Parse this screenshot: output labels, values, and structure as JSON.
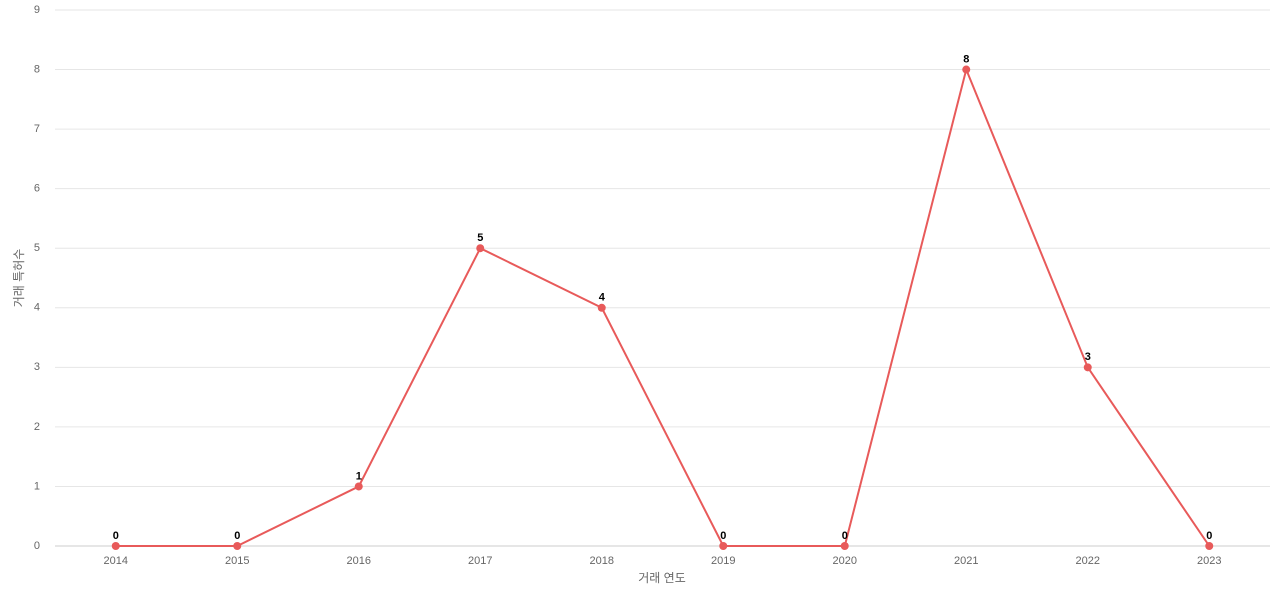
{
  "chart_data": {
    "type": "line",
    "x_label": "거래 연도",
    "y_label": "거래 특허수",
    "categories": [
      "2014",
      "2015",
      "2016",
      "2017",
      "2018",
      "2019",
      "2020",
      "2021",
      "2022",
      "2023"
    ],
    "values": [
      0,
      0,
      1,
      5,
      4,
      0,
      0,
      8,
      3,
      0
    ],
    "color": "#e85a5a",
    "ylim": [
      0,
      9
    ],
    "yticks": [
      0,
      1,
      2,
      3,
      4,
      5,
      6,
      7,
      8,
      9
    ],
    "grid": true
  }
}
